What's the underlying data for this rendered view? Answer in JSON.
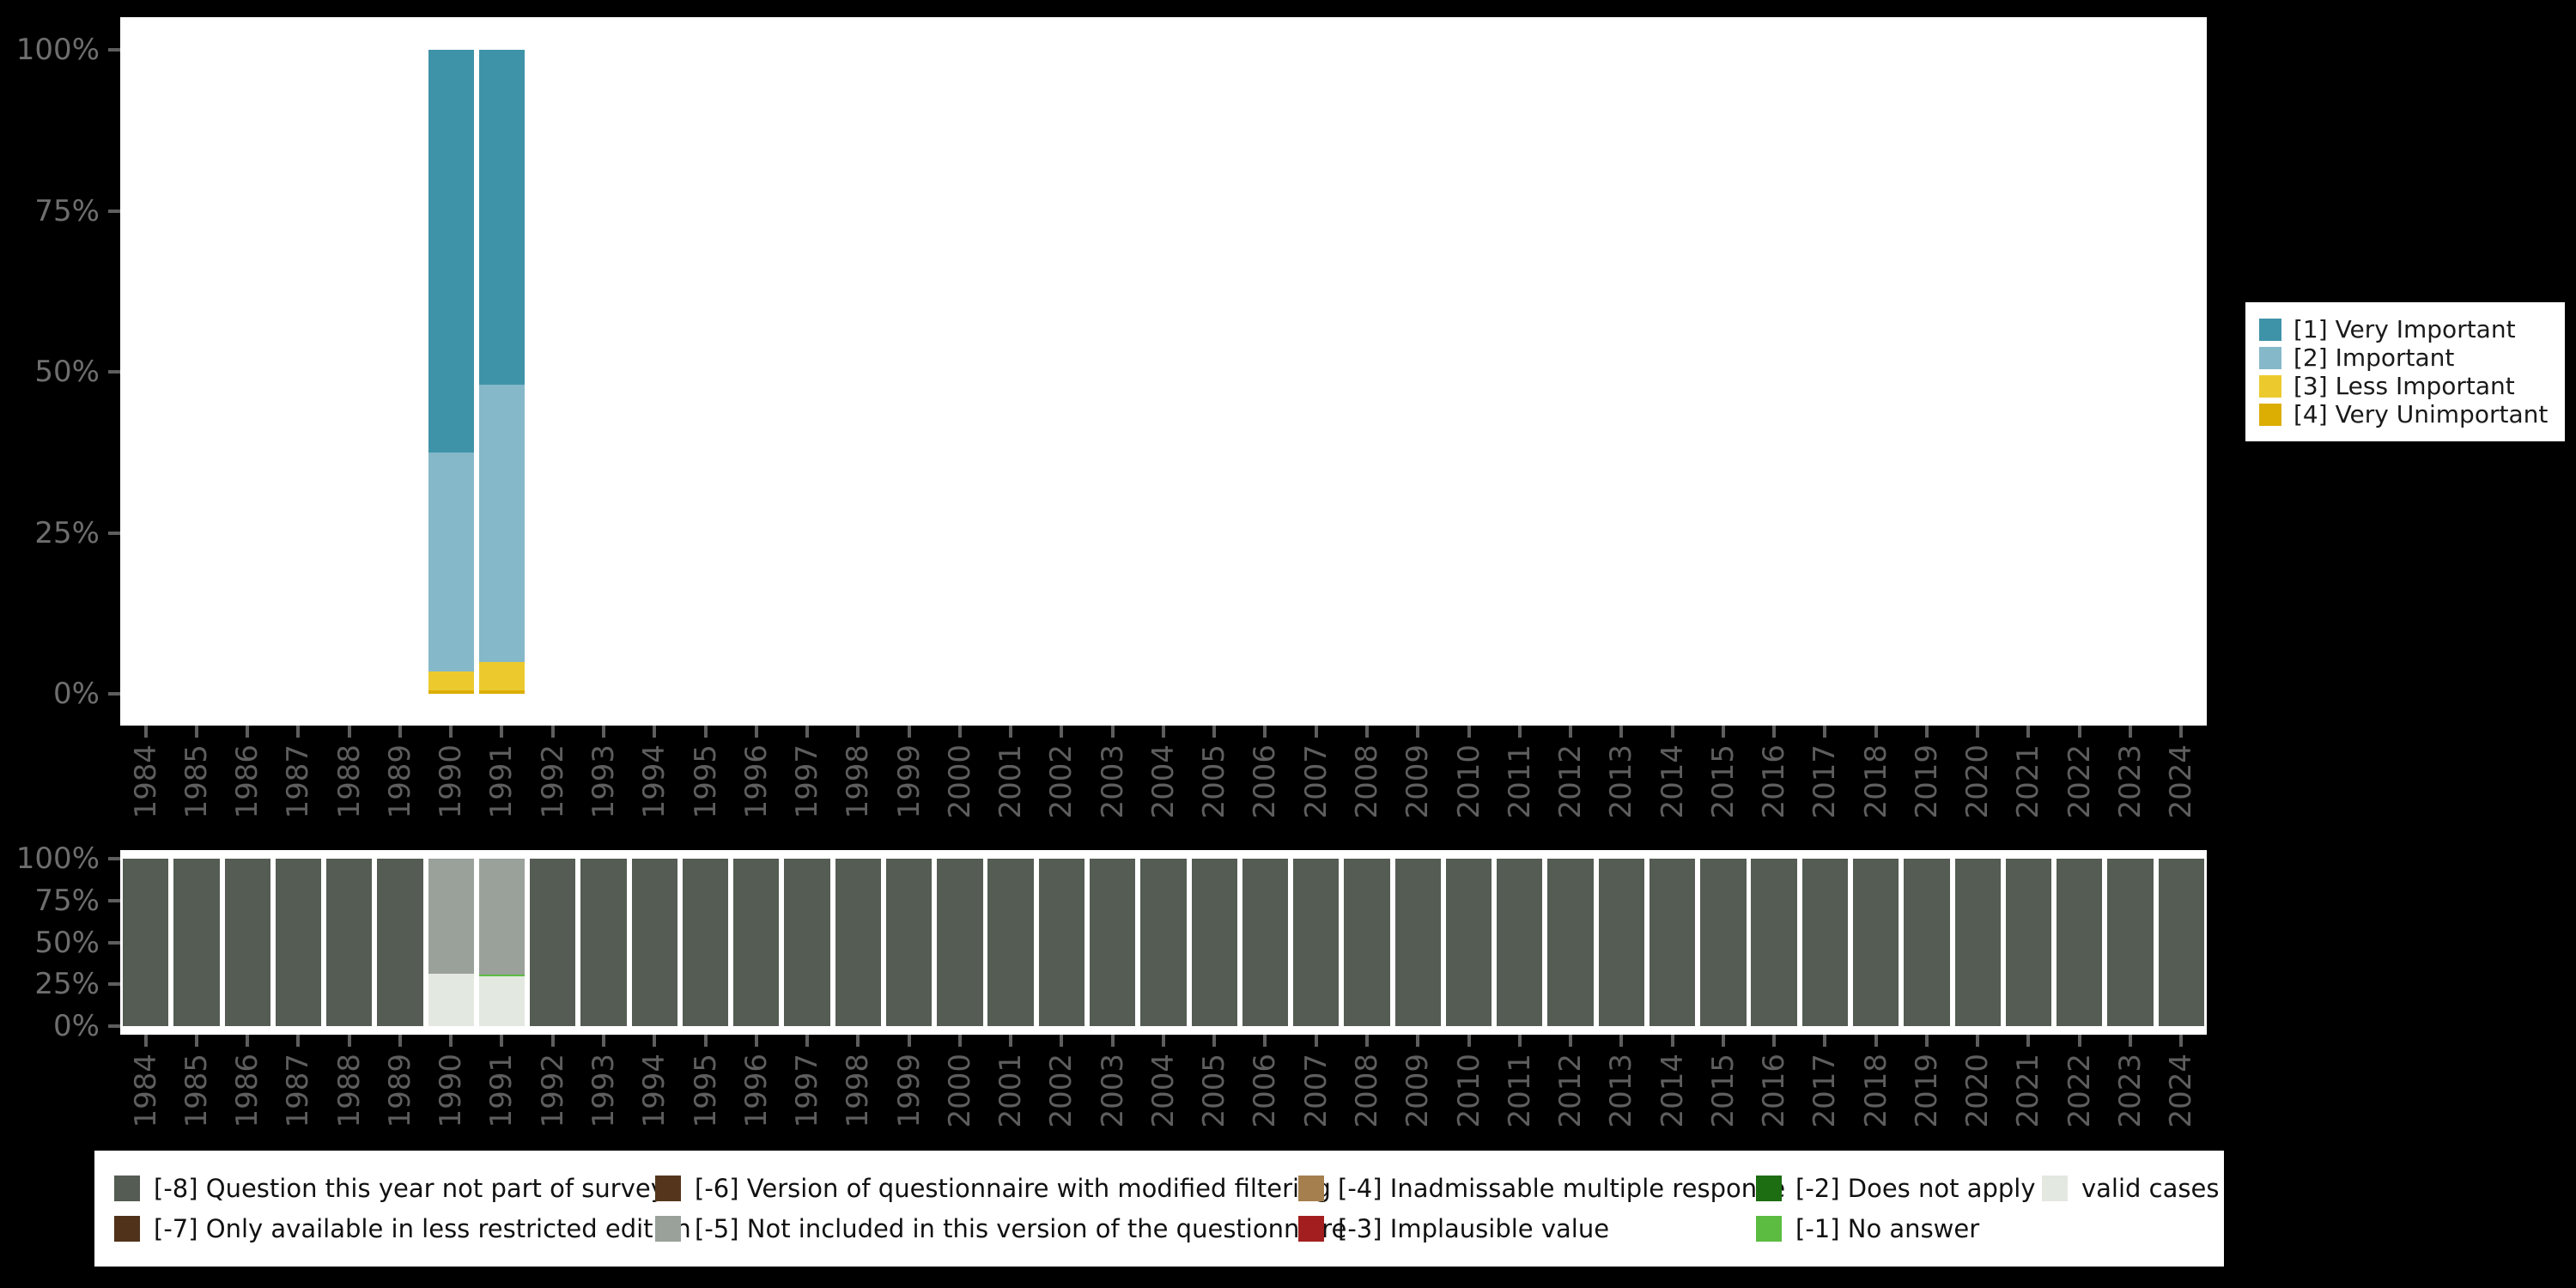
{
  "years": [
    "1984",
    "1985",
    "1986",
    "1987",
    "1988",
    "1989",
    "1990",
    "1991",
    "1992",
    "1993",
    "1994",
    "1995",
    "1996",
    "1997",
    "1998",
    "1999",
    "2000",
    "2001",
    "2002",
    "2003",
    "2004",
    "2005",
    "2006",
    "2007",
    "2008",
    "2009",
    "2010",
    "2011",
    "2012",
    "2013",
    "2014",
    "2015",
    "2016",
    "2017",
    "2018",
    "2019",
    "2020",
    "2021",
    "2022",
    "2023",
    "2024"
  ],
  "y_ticks": [
    "100%",
    "75%",
    "50%",
    "25%",
    "0%"
  ],
  "colors": {
    "very_important": "#3f93a8",
    "important": "#85b8c9",
    "less_important": "#ecca2e",
    "very_unimportant": "#dcae04",
    "not_part_of_survey": "#545c53",
    "less_restricted_edition": "#50321a",
    "modified_filtering": "#55361c",
    "not_in_questionnaire": "#9aa19a",
    "inadmissable_multiple": "#a57f4e",
    "implausible": "#a31f1f",
    "does_not_apply": "#1d6d12",
    "no_answer": "#5cbc42",
    "valid_cases": "#e3e8e1",
    "axis_label": "#6e6e6e",
    "tick_label": "#5e5e5e",
    "page_background": "#000000",
    "plot_background": "#ffffff"
  },
  "chart_data": [
    {
      "id": "responses",
      "type": "bar",
      "stacked": true,
      "units": "percent",
      "title": "",
      "xlabel": "",
      "ylabel": "",
      "ylim": [
        0,
        100
      ],
      "y_tick_labels": [
        "0%",
        "25%",
        "50%",
        "75%",
        "100%"
      ],
      "categories": "years",
      "legend_position": "right",
      "series": [
        {
          "name": "[4] Very Unimportant",
          "color_key": "very_unimportant",
          "values": {
            "1990": 0.5,
            "1991": 0.5
          }
        },
        {
          "name": "[3] Less Important",
          "color_key": "less_important",
          "values": {
            "1990": 3.0,
            "1991": 4.5
          }
        },
        {
          "name": "[2] Important",
          "color_key": "important",
          "values": {
            "1990": 34.0,
            "1991": 43.0
          }
        },
        {
          "name": "[1] Very Important",
          "color_key": "very_important",
          "values": {
            "1990": 62.5,
            "1991": 52.0
          }
        }
      ]
    },
    {
      "id": "missing-values",
      "type": "bar",
      "stacked": true,
      "units": "percent",
      "title": "",
      "xlabel": "",
      "ylabel": "",
      "ylim": [
        0,
        100
      ],
      "y_tick_labels": [
        "0%",
        "25%",
        "50%",
        "75%",
        "100%"
      ],
      "categories": "years",
      "legend_position": "bottom",
      "series": [
        {
          "name": "valid cases",
          "color_key": "valid_cases",
          "values": {
            "1990": 31.5,
            "1991": 30.0
          }
        },
        {
          "name": "[-1] No answer",
          "color_key": "no_answer",
          "values": {
            "1991": 1.0
          }
        },
        {
          "name": "[-5] Not included in this version of the questionnaire",
          "color_key": "not_in_questionnaire",
          "values": {
            "1990": 68.5,
            "1991": 69.0
          }
        },
        {
          "name": "[-8] Question this year not part of survey",
          "color_key": "not_part_of_survey",
          "values": {
            "1984": 100,
            "1985": 100,
            "1986": 100,
            "1987": 100,
            "1988": 100,
            "1989": 100,
            "1992": 100,
            "1993": 100,
            "1994": 100,
            "1995": 100,
            "1996": 100,
            "1997": 100,
            "1998": 100,
            "1999": 100,
            "2000": 100,
            "2001": 100,
            "2002": 100,
            "2003": 100,
            "2004": 100,
            "2005": 100,
            "2006": 100,
            "2007": 100,
            "2008": 100,
            "2009": 100,
            "2010": 100,
            "2011": 100,
            "2012": 100,
            "2013": 100,
            "2014": 100,
            "2015": 100,
            "2016": 100,
            "2017": 100,
            "2018": 100,
            "2019": 100,
            "2020": 100,
            "2021": 100,
            "2022": 100,
            "2023": 100,
            "2024": 100
          }
        }
      ]
    }
  ],
  "legends": {
    "right": {
      "items": [
        {
          "label": "[1] Very Important",
          "color_key": "very_important"
        },
        {
          "label": "[2] Important",
          "color_key": "important"
        },
        {
          "label": "[3] Less Important",
          "color_key": "less_important"
        },
        {
          "label": "[4] Very Unimportant",
          "color_key": "very_unimportant"
        }
      ]
    },
    "bottom": {
      "columns": [
        [
          {
            "label": "[-8] Question this year not part of survey",
            "color_key": "not_part_of_survey"
          },
          {
            "label": "[-7] Only available in less restricted edition",
            "color_key": "less_restricted_edition"
          }
        ],
        [
          {
            "label": "[-6] Version of questionnaire with modified filtering",
            "color_key": "modified_filtering"
          },
          {
            "label": "[-5] Not included in this version of the questionnaire",
            "color_key": "not_in_questionnaire"
          }
        ],
        [
          {
            "label": "[-4] Inadmissable multiple response",
            "color_key": "inadmissable_multiple"
          },
          {
            "label": "[-3] Implausible value",
            "color_key": "implausible"
          }
        ],
        [
          {
            "label": "[-2] Does not apply",
            "color_key": "does_not_apply"
          },
          {
            "label": "[-1] No answer",
            "color_key": "no_answer"
          }
        ],
        [
          {
            "label": "valid cases",
            "color_key": "valid_cases"
          }
        ]
      ]
    }
  }
}
